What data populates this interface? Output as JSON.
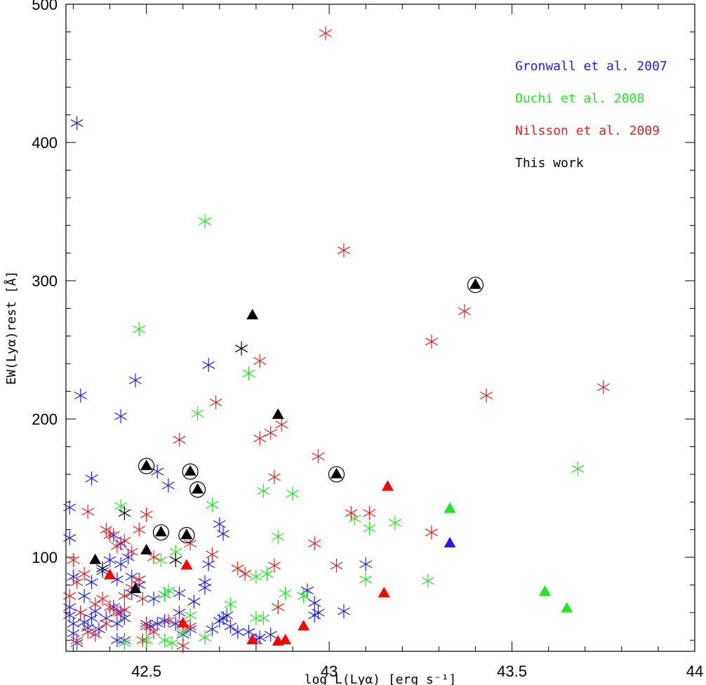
{
  "chart_data": {
    "type": "scatter",
    "xlabel": "log L(Lyα) [erg s⁻¹]",
    "ylabel": "EW(Lyα)rest [Å]",
    "xlim": [
      42.28,
      44.0
    ],
    "ylim": [
      32,
      500
    ],
    "x_ticks": [
      42.5,
      43,
      43.5,
      44
    ],
    "x_tick_labels": [
      "42.5",
      "43",
      "43.5",
      "44"
    ],
    "y_ticks": [
      100,
      200,
      300,
      400,
      500
    ],
    "y_tick_labels": [
      "100",
      "200",
      "300",
      "400",
      "500"
    ],
    "legend_position": "top-right",
    "series": [
      {
        "name": "Gronwall et al. 2007",
        "color": "#1f1fe6",
        "marker": "asterisk",
        "points": [
          [
            42.31,
            414
          ],
          [
            42.32,
            217
          ],
          [
            42.47,
            228
          ],
          [
            42.43,
            202
          ],
          [
            42.67,
            239
          ],
          [
            42.35,
            157
          ],
          [
            42.56,
            152
          ],
          [
            42.53,
            162
          ],
          [
            42.29,
            136
          ],
          [
            42.29,
            114
          ],
          [
            42.41,
            116
          ],
          [
            42.43,
            110
          ],
          [
            42.7,
            124
          ],
          [
            42.71,
            117
          ],
          [
            42.4,
            98
          ],
          [
            42.43,
            95
          ],
          [
            42.45,
            100
          ],
          [
            42.67,
            95
          ],
          [
            42.3,
            86
          ],
          [
            42.33,
            72
          ],
          [
            42.35,
            82
          ],
          [
            42.38,
            90
          ],
          [
            42.42,
            84
          ],
          [
            42.46,
            86
          ],
          [
            42.55,
            73
          ],
          [
            42.59,
            74
          ],
          [
            42.63,
            68
          ],
          [
            42.66,
            82
          ],
          [
            42.66,
            78
          ],
          [
            42.71,
            56
          ],
          [
            42.72,
            58
          ],
          [
            42.84,
            44
          ],
          [
            42.94,
            76
          ],
          [
            42.96,
            67
          ],
          [
            42.97,
            60
          ],
          [
            42.96,
            58
          ],
          [
            43.04,
            61
          ],
          [
            43.1,
            95
          ],
          [
            42.29,
            64
          ],
          [
            42.29,
            58
          ],
          [
            42.3,
            52
          ],
          [
            42.3,
            45
          ],
          [
            42.31,
            38
          ],
          [
            42.32,
            60
          ],
          [
            42.33,
            53
          ],
          [
            42.34,
            49
          ],
          [
            42.35,
            56
          ],
          [
            42.36,
            61
          ],
          [
            42.37,
            48
          ],
          [
            42.39,
            56
          ],
          [
            42.41,
            64
          ],
          [
            42.42,
            52
          ],
          [
            42.43,
            60
          ],
          [
            42.44,
            56
          ],
          [
            42.42,
            40
          ],
          [
            42.44,
            40
          ],
          [
            42.5,
            52
          ],
          [
            42.51,
            50
          ],
          [
            42.53,
            52
          ],
          [
            42.55,
            54
          ],
          [
            42.58,
            52
          ],
          [
            42.59,
            60
          ],
          [
            42.6,
            44
          ],
          [
            42.62,
            48
          ],
          [
            42.68,
            48
          ],
          [
            42.7,
            54
          ],
          [
            42.73,
            50
          ],
          [
            42.75,
            46
          ],
          [
            42.78,
            46
          ],
          [
            42.8,
            40
          ],
          [
            42.81,
            42
          ],
          [
            42.46,
            74
          ],
          [
            42.48,
            80
          ],
          [
            42.52,
            70
          ]
        ]
      },
      {
        "name": "Ouchi et al. 2008",
        "color": "#22e622",
        "marker": "asterisk",
        "points": [
          [
            42.66,
            343
          ],
          [
            42.48,
            265
          ],
          [
            42.78,
            233
          ],
          [
            42.64,
            204
          ],
          [
            42.68,
            138
          ],
          [
            42.43,
            137
          ],
          [
            42.82,
            148
          ],
          [
            42.9,
            146
          ],
          [
            43.07,
            128
          ],
          [
            43.11,
            121
          ],
          [
            43.18,
            125
          ],
          [
            42.86,
            115
          ],
          [
            42.54,
            98
          ],
          [
            42.58,
            104
          ],
          [
            42.8,
            86
          ],
          [
            42.83,
            88
          ],
          [
            42.88,
            74
          ],
          [
            42.93,
            72
          ],
          [
            43.1,
            84
          ],
          [
            43.27,
            83
          ],
          [
            42.73,
            66
          ],
          [
            42.8,
            56
          ],
          [
            42.82,
            56
          ],
          [
            42.86,
            64
          ],
          [
            42.44,
            38
          ],
          [
            42.5,
            40
          ],
          [
            42.55,
            40
          ],
          [
            42.57,
            38
          ],
          [
            42.6,
            46
          ],
          [
            42.66,
            42
          ],
          [
            42.56,
            76
          ],
          [
            43.68,
            164
          ],
          [
            42.62,
            58
          ],
          [
            42.55,
            73
          ]
        ]
      },
      {
        "name": "Nilsson et al. 2009",
        "color": "#e62020",
        "marker": "asterisk",
        "points": [
          [
            42.99,
            479
          ],
          [
            43.04,
            322
          ],
          [
            43.37,
            278
          ],
          [
            43.28,
            256
          ],
          [
            42.81,
            242
          ],
          [
            43.43,
            217
          ],
          [
            43.75,
            223
          ],
          [
            42.69,
            212
          ],
          [
            42.59,
            185
          ],
          [
            42.81,
            186
          ],
          [
            42.84,
            190
          ],
          [
            42.87,
            196
          ],
          [
            42.97,
            173
          ],
          [
            42.85,
            158
          ],
          [
            42.34,
            133
          ],
          [
            42.39,
            120
          ],
          [
            42.4,
            116
          ],
          [
            42.42,
            108
          ],
          [
            42.44,
            112
          ],
          [
            42.46,
            104
          ],
          [
            42.48,
            120
          ],
          [
            42.5,
            131
          ],
          [
            42.52,
            100
          ],
          [
            42.62,
            110
          ],
          [
            42.68,
            102
          ],
          [
            42.75,
            92
          ],
          [
            42.77,
            88
          ],
          [
            42.85,
            94
          ],
          [
            42.96,
            110
          ],
          [
            43.02,
            94
          ],
          [
            43.06,
            132
          ],
          [
            43.11,
            132
          ],
          [
            43.28,
            118
          ],
          [
            42.29,
            72
          ],
          [
            42.31,
            82
          ],
          [
            42.33,
            88
          ],
          [
            42.36,
            66
          ],
          [
            42.38,
            70
          ],
          [
            42.4,
            64
          ],
          [
            42.42,
            60
          ],
          [
            42.44,
            72
          ],
          [
            42.46,
            78
          ],
          [
            42.48,
            84
          ],
          [
            42.49,
            70
          ],
          [
            42.5,
            50
          ],
          [
            42.56,
            54
          ],
          [
            42.6,
            52
          ],
          [
            42.62,
            50
          ],
          [
            42.32,
            60
          ],
          [
            42.34,
            46
          ],
          [
            42.36,
            44
          ],
          [
            42.39,
            52
          ],
          [
            42.44,
            62
          ],
          [
            42.49,
            40
          ],
          [
            42.52,
            46
          ],
          [
            42.6,
            36
          ],
          [
            42.86,
            64
          ],
          [
            42.31,
            40
          ],
          [
            42.3,
            98
          ]
        ]
      },
      {
        "name": "This work",
        "color": "#000000",
        "marker": "asterisk",
        "points": [
          [
            42.76,
            251
          ],
          [
            42.44,
            132
          ],
          [
            42.58,
            98
          ],
          [
            42.38,
            92
          ]
        ]
      }
    ],
    "triangles": [
      {
        "color": "#000000",
        "points": [
          [
            42.79,
            275
          ],
          [
            42.86,
            203
          ],
          [
            42.36,
            98
          ],
          [
            42.5,
            105
          ],
          [
            42.47,
            77
          ]
        ]
      },
      {
        "color": "#000000",
        "circled": true,
        "points": [
          [
            43.4,
            297
          ],
          [
            42.5,
            166
          ],
          [
            42.62,
            162
          ],
          [
            42.64,
            149
          ],
          [
            43.02,
            160
          ],
          [
            42.54,
            118
          ],
          [
            42.61,
            116
          ]
        ]
      },
      {
        "color": "#ff0000",
        "points": [
          [
            43.16,
            151
          ],
          [
            42.4,
            87
          ],
          [
            42.61,
            94
          ],
          [
            43.15,
            74
          ],
          [
            42.6,
            52
          ],
          [
            42.79,
            40
          ],
          [
            42.86,
            39
          ],
          [
            42.88,
            40
          ],
          [
            42.93,
            50
          ]
        ]
      },
      {
        "color": "#22e622",
        "points": [
          [
            43.33,
            135
          ],
          [
            43.59,
            75
          ],
          [
            43.65,
            63
          ]
        ]
      },
      {
        "color": "#1f1fe6",
        "points": [
          [
            43.33,
            110
          ]
        ]
      }
    ]
  }
}
